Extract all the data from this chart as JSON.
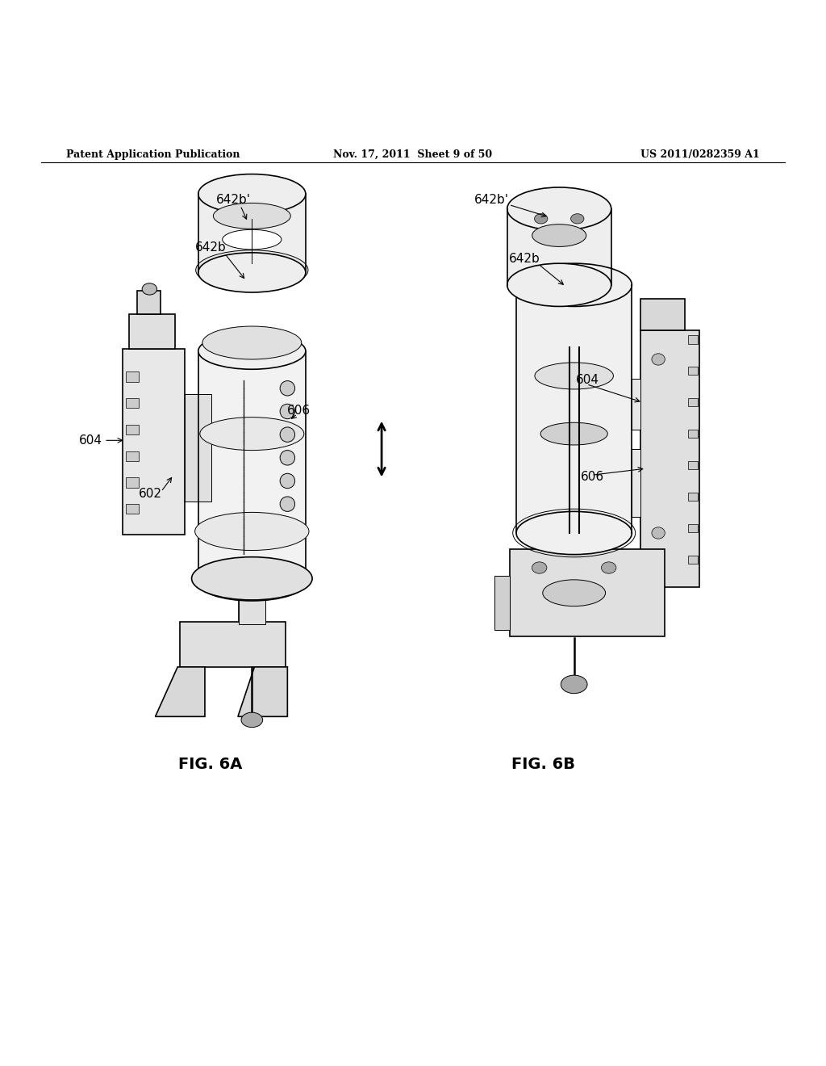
{
  "bg_color": "#ffffff",
  "header_left": "Patent Application Publication",
  "header_center": "Nov. 17, 2011  Sheet 9 of 50",
  "header_right": "US 2011/0282359 A1",
  "fig_label_A": "FIG. 6A",
  "fig_label_B": "FIG. 6B"
}
